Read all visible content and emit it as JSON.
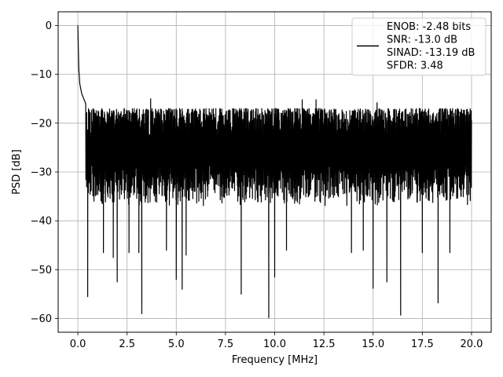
{
  "chart_data": {
    "type": "line",
    "title": "",
    "xlabel": "Frequency [MHz]",
    "ylabel": "PSD [dB]",
    "xlim": [
      -1.0,
      21.0
    ],
    "ylim": [
      -62.8,
      2.8
    ],
    "xticks": [
      0.0,
      2.5,
      5.0,
      7.5,
      10.0,
      12.5,
      15.0,
      17.5,
      20.0
    ],
    "xtick_labels": [
      "0.0",
      "2.5",
      "5.0",
      "7.5",
      "10.0",
      "12.5",
      "15.0",
      "17.5",
      "20.0"
    ],
    "yticks": [
      0,
      -10,
      -20,
      -30,
      -40,
      -50,
      -60
    ],
    "ytick_labels": [
      "0",
      "−10",
      "−20",
      "−30",
      "−40",
      "−50",
      "−60"
    ],
    "grid": true,
    "legend_position": "top-right",
    "legend_lines": [
      "ENOB: -2.48 bits",
      "SNR: -13.0 dB",
      "SINAD: -13.19 dB",
      "SFDR: 3.48"
    ],
    "series": [
      {
        "color": "#000000",
        "description": "noise-like power spectral density from 0 to 20 MHz, peak 0 dB at 0 MHz",
        "x_range": [
          0.0,
          20.0
        ],
        "peak": {
          "x": 0.0,
          "y": 0.0
        },
        "initial_decay": [
          {
            "x": 0.0,
            "y": 0.0
          },
          {
            "x": 0.02,
            "y": -4.0
          },
          {
            "x": 0.05,
            "y": -9.0
          },
          {
            "x": 0.1,
            "y": -12.0
          },
          {
            "x": 0.2,
            "y": -14.0
          },
          {
            "x": 0.4,
            "y": -16.0
          }
        ],
        "typical_upper_envelope_db": -17.0,
        "typical_lower_envelope_db": -37.0,
        "deep_notches": [
          {
            "x": 0.5,
            "y": -55.5
          },
          {
            "x": 1.3,
            "y": -46.5
          },
          {
            "x": 1.8,
            "y": -47.5
          },
          {
            "x": 2.0,
            "y": -52.5
          },
          {
            "x": 2.6,
            "y": -46.5
          },
          {
            "x": 3.1,
            "y": -46.5
          },
          {
            "x": 3.25,
            "y": -59.0
          },
          {
            "x": 4.5,
            "y": -46.0
          },
          {
            "x": 5.0,
            "y": -52.0
          },
          {
            "x": 5.3,
            "y": -54.0
          },
          {
            "x": 5.5,
            "y": -47.0
          },
          {
            "x": 8.3,
            "y": -55.0
          },
          {
            "x": 9.7,
            "y": -59.8
          },
          {
            "x": 10.0,
            "y": -51.5
          },
          {
            "x": 10.6,
            "y": -46.0
          },
          {
            "x": 13.9,
            "y": -46.5
          },
          {
            "x": 14.5,
            "y": -46.0
          },
          {
            "x": 15.0,
            "y": -53.8
          },
          {
            "x": 15.7,
            "y": -52.5
          },
          {
            "x": 16.4,
            "y": -59.3
          },
          {
            "x": 17.5,
            "y": -46.5
          },
          {
            "x": 18.3,
            "y": -56.8
          },
          {
            "x": 18.9,
            "y": -46.5
          }
        ],
        "tall_spikes": [
          {
            "x": 3.7,
            "y": -15.0
          },
          {
            "x": 11.4,
            "y": -15.2
          },
          {
            "x": 12.1,
            "y": -15.2
          },
          {
            "x": 15.2,
            "y": -15.8
          }
        ]
      }
    ]
  }
}
